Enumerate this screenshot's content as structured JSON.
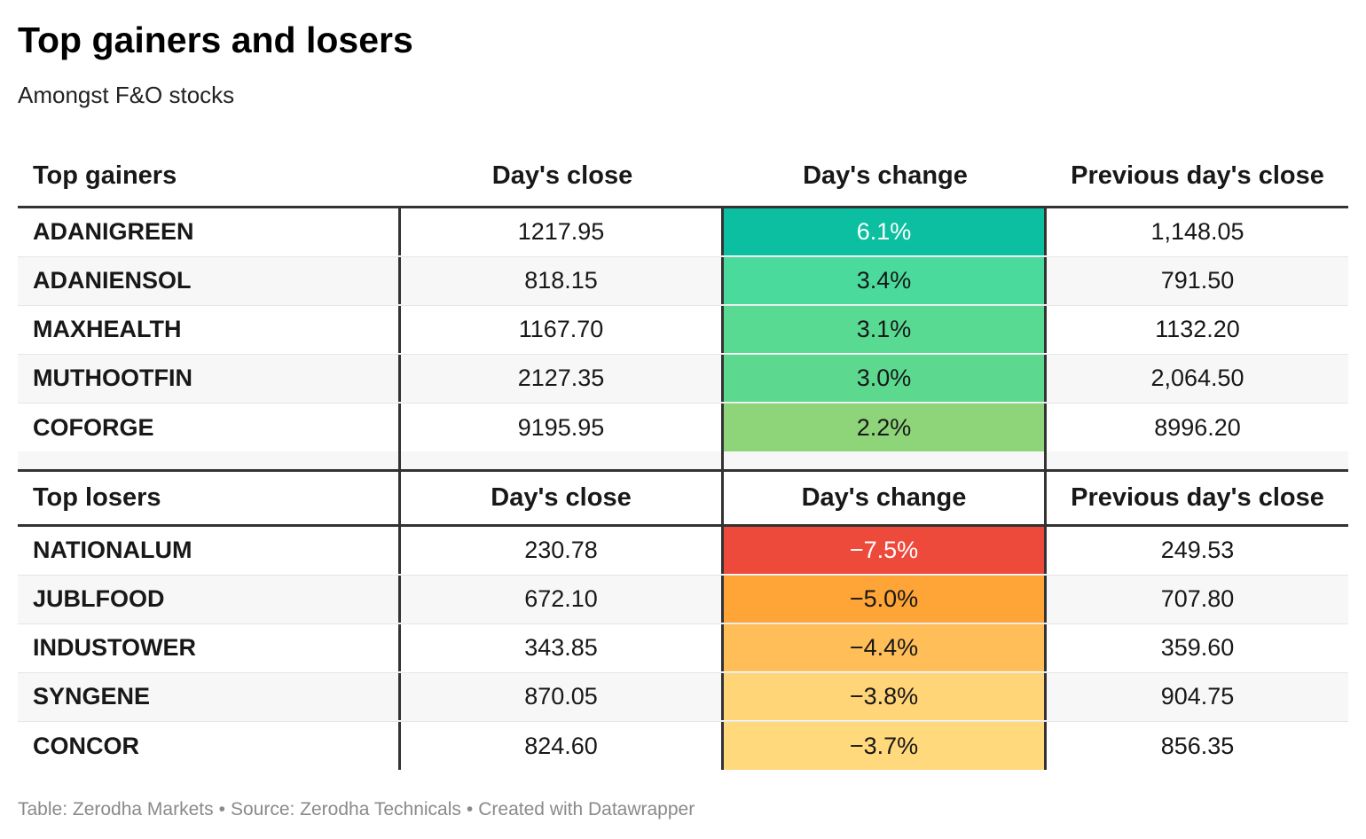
{
  "title": "Top gainers and losers",
  "subtitle": "Amongst F&O stocks",
  "colors": {
    "header_rule": "#333333",
    "row_alt": "#f7f7f7"
  },
  "gainers": {
    "header": [
      "Top gainers",
      "Day's close",
      "Day's change",
      "Previous day's close"
    ],
    "rows": [
      {
        "stock": "ADANIGREEN",
        "close": "1217.95",
        "change": "6.1%",
        "prev": "1,148.05",
        "color": "#0bbfa0",
        "text_color": "#ffffff"
      },
      {
        "stock": "ADANIENSOL",
        "close": "818.15",
        "change": "3.4%",
        "prev": "791.50",
        "color": "#4adb9c",
        "text_color": "#181818"
      },
      {
        "stock": "MAXHEALTH",
        "close": "1167.70",
        "change": "3.1%",
        "prev": "1132.20",
        "color": "#59da93",
        "text_color": "#181818"
      },
      {
        "stock": "MUTHOOTFIN",
        "close": "2127.35",
        "change": "3.0%",
        "prev": "2,064.50",
        "color": "#5dd98f",
        "text_color": "#181818"
      },
      {
        "stock": "COFORGE",
        "close": "9195.95",
        "change": "2.2%",
        "prev": "8996.20",
        "color": "#8ed57a",
        "text_color": "#181818"
      }
    ]
  },
  "losers": {
    "header": [
      "Top losers",
      "Day's close",
      "Day's change",
      "Previous day's close"
    ],
    "rows": [
      {
        "stock": "NATIONALUM",
        "close": "230.78",
        "change": "−7.5%",
        "prev": "249.53",
        "color": "#ee4a3c",
        "text_color": "#ffffff"
      },
      {
        "stock": "JUBLFOOD",
        "close": "672.10",
        "change": "−5.0%",
        "prev": "707.80",
        "color": "#ffa436",
        "text_color": "#181818"
      },
      {
        "stock": "INDUSTOWER",
        "close": "343.85",
        "change": "−4.4%",
        "prev": "359.60",
        "color": "#ffbe58",
        "text_color": "#181818"
      },
      {
        "stock": "SYNGENE",
        "close": "870.05",
        "change": "−3.8%",
        "prev": "904.75",
        "color": "#ffd578",
        "text_color": "#181818"
      },
      {
        "stock": "CONCOR",
        "close": "824.60",
        "change": "−3.7%",
        "prev": "856.35",
        "color": "#ffd97c",
        "text_color": "#181818"
      }
    ]
  },
  "footer": {
    "table": "Table: Zerodha Markets",
    "source": "Source: Zerodha Technicals",
    "created": "Created with Datawrapper",
    "separator": "•"
  },
  "chart_data": {
    "type": "table",
    "title": "Top gainers and losers",
    "subtitle": "Amongst F&O stocks",
    "columns": [
      "Day's close",
      "Day's change",
      "Previous day's close"
    ],
    "gainers": [
      {
        "stock": "ADANIGREEN",
        "close": 1217.95,
        "change_pct": 6.1,
        "prev_close": 1148.05
      },
      {
        "stock": "ADANIENSOL",
        "close": 818.15,
        "change_pct": 3.4,
        "prev_close": 791.5
      },
      {
        "stock": "MAXHEALTH",
        "close": 1167.7,
        "change_pct": 3.1,
        "prev_close": 1132.2
      },
      {
        "stock": "MUTHOOTFIN",
        "close": 2127.35,
        "change_pct": 3.0,
        "prev_close": 2064.5
      },
      {
        "stock": "COFORGE",
        "close": 9195.95,
        "change_pct": 2.2,
        "prev_close": 8996.2
      }
    ],
    "losers": [
      {
        "stock": "NATIONALUM",
        "close": 230.78,
        "change_pct": -7.5,
        "prev_close": 249.53
      },
      {
        "stock": "JUBLFOOD",
        "close": 672.1,
        "change_pct": -5.0,
        "prev_close": 707.8
      },
      {
        "stock": "INDUSTOWER",
        "close": 343.85,
        "change_pct": -4.4,
        "prev_close": 359.6
      },
      {
        "stock": "SYNGENE",
        "close": 870.05,
        "change_pct": -3.8,
        "prev_close": 904.75
      },
      {
        "stock": "CONCOR",
        "close": 824.6,
        "change_pct": -3.7,
        "prev_close": 856.35
      }
    ]
  }
}
